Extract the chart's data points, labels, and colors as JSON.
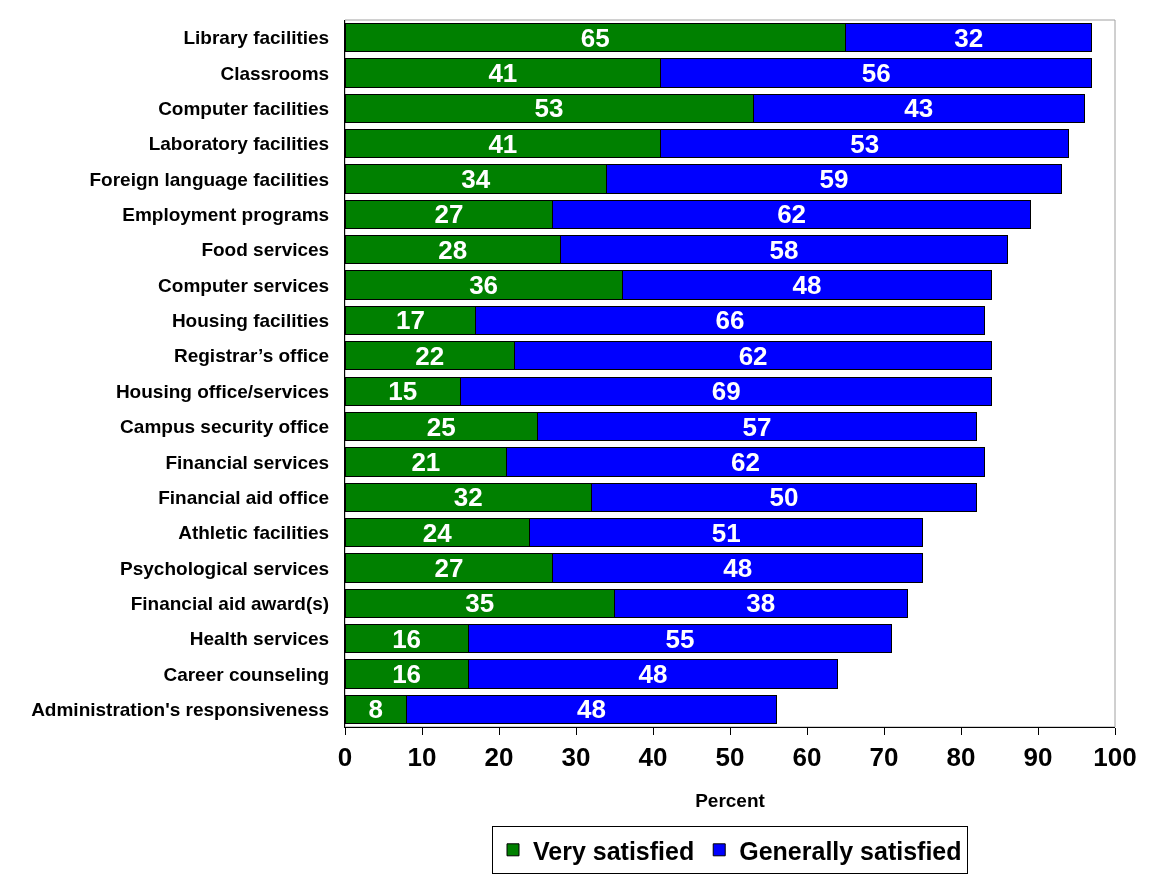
{
  "chart_data": {
    "type": "bar",
    "orientation": "horizontal",
    "stacked": true,
    "categories": [
      "Library facilities",
      "Classrooms",
      "Computer facilities",
      "Laboratory facilities",
      "Foreign language facilities",
      "Employment programs",
      "Food services",
      "Computer services",
      "Housing facilities",
      "Registrar’s office",
      "Housing office/services",
      "Campus security office",
      "Financial services",
      "Financial aid office",
      "Athletic facilities",
      "Psychological services",
      "Financial aid award(s)",
      "Health services",
      "Career counseling",
      "Administration's responsiveness"
    ],
    "series": [
      {
        "name": "Very satisfied",
        "color": "#008000",
        "values": [
          65,
          41,
          53,
          41,
          34,
          27,
          28,
          36,
          17,
          22,
          15,
          25,
          21,
          32,
          24,
          27,
          35,
          16,
          16,
          8
        ]
      },
      {
        "name": "Generally satisfied",
        "color": "#0000ff",
        "values": [
          32,
          56,
          43,
          53,
          59,
          62,
          58,
          48,
          66,
          62,
          69,
          57,
          62,
          50,
          51,
          48,
          38,
          55,
          48,
          48
        ]
      }
    ],
    "xlim": [
      0,
      100
    ],
    "xticks": [
      0,
      10,
      20,
      30,
      40,
      50,
      60,
      70,
      80,
      90,
      100
    ],
    "xlabel": "Percent",
    "data_labels": true,
    "legend": "bottom"
  }
}
